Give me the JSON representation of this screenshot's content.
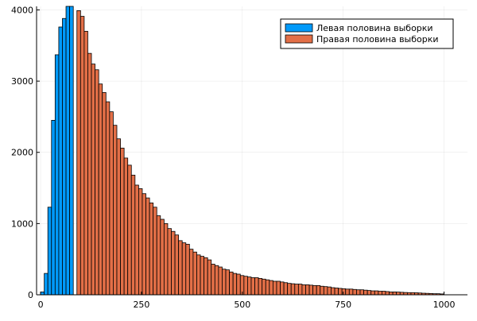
{
  "chart_data": {
    "type": "bar",
    "subtype": "histogram",
    "bin_width": 9,
    "xlim": [
      -10,
      1058
    ],
    "ylim": [
      0,
      4050
    ],
    "grid": true,
    "legend_position": "top-right",
    "x_ticks": [
      0,
      250,
      500,
      750,
      1000
    ],
    "x_tick_labels": [
      "0",
      "250",
      "500",
      "750",
      "1000"
    ],
    "y_ticks": [
      0,
      1000,
      2000,
      3000,
      4000
    ],
    "y_tick_labels": [
      "0",
      "1000",
      "2000",
      "3000",
      "4000"
    ],
    "series": [
      {
        "name": "Левая половина выборки",
        "color": "#009AFA",
        "bin_starts": [
          0,
          9,
          18,
          27,
          36,
          45,
          54,
          63,
          72
        ],
        "values": [
          40,
          300,
          1230,
          2450,
          3370,
          3760,
          3880,
          4050,
          4050
        ]
      },
      {
        "name": "Правая половина выборки",
        "color": "#E36F47",
        "bin_starts": [
          90,
          99,
          108,
          117,
          126,
          135,
          144,
          153,
          162,
          171,
          180,
          189,
          198,
          207,
          216,
          225,
          234,
          243,
          252,
          261,
          270,
          279,
          288,
          297,
          306,
          315,
          324,
          333,
          342,
          351,
          360,
          369,
          378,
          387,
          396,
          405,
          414,
          423,
          432,
          441,
          450,
          459,
          468,
          477,
          486,
          495,
          504,
          513,
          522,
          531,
          540,
          549,
          558,
          567,
          576,
          585,
          594,
          603,
          612,
          621,
          630,
          639,
          648,
          657,
          666,
          675,
          684,
          693,
          702,
          711,
          720,
          729,
          738,
          747,
          756,
          765,
          774,
          783,
          792,
          801,
          810,
          819,
          828,
          837,
          846,
          855,
          864,
          873,
          882,
          891,
          900,
          909,
          918,
          927,
          936,
          945,
          954,
          963,
          972,
          981,
          990
        ],
        "values": [
          3990,
          3910,
          3700,
          3390,
          3240,
          3160,
          2960,
          2840,
          2710,
          2570,
          2380,
          2190,
          2060,
          1920,
          1820,
          1680,
          1540,
          1490,
          1420,
          1360,
          1290,
          1230,
          1110,
          1060,
          1000,
          930,
          890,
          840,
          760,
          730,
          710,
          640,
          600,
          560,
          540,
          520,
          490,
          430,
          410,
          390,
          360,
          350,
          320,
          300,
          290,
          270,
          260,
          250,
          240,
          240,
          230,
          220,
          210,
          200,
          190,
          190,
          180,
          170,
          160,
          155,
          150,
          150,
          140,
          140,
          135,
          130,
          130,
          120,
          115,
          110,
          100,
          95,
          90,
          85,
          80,
          80,
          75,
          70,
          70,
          65,
          60,
          55,
          55,
          50,
          50,
          45,
          40,
          40,
          38,
          35,
          32,
          30,
          30,
          28,
          25,
          22,
          20,
          18,
          15,
          15,
          12
        ]
      }
    ]
  }
}
